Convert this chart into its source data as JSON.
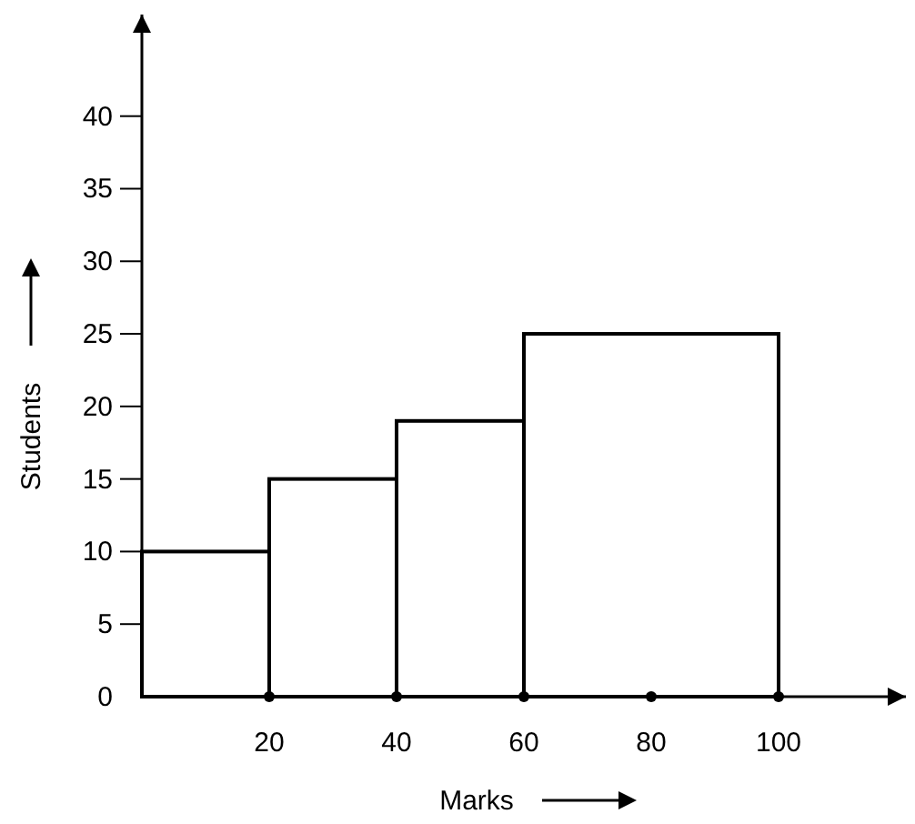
{
  "chart_data": {
    "type": "histogram",
    "xlabel": "Marks",
    "ylabel": "Students",
    "bins": [
      0,
      20,
      40,
      60,
      100
    ],
    "values": [
      10,
      15,
      19,
      25
    ],
    "color": "#000000",
    "xlim": [
      0,
      120
    ],
    "ylim": [
      0,
      47
    ],
    "xticks": [
      20,
      40,
      60,
      80,
      100
    ],
    "yticks": [
      0,
      5,
      10,
      15,
      20,
      25,
      30,
      35,
      40
    ],
    "grid": false
  }
}
